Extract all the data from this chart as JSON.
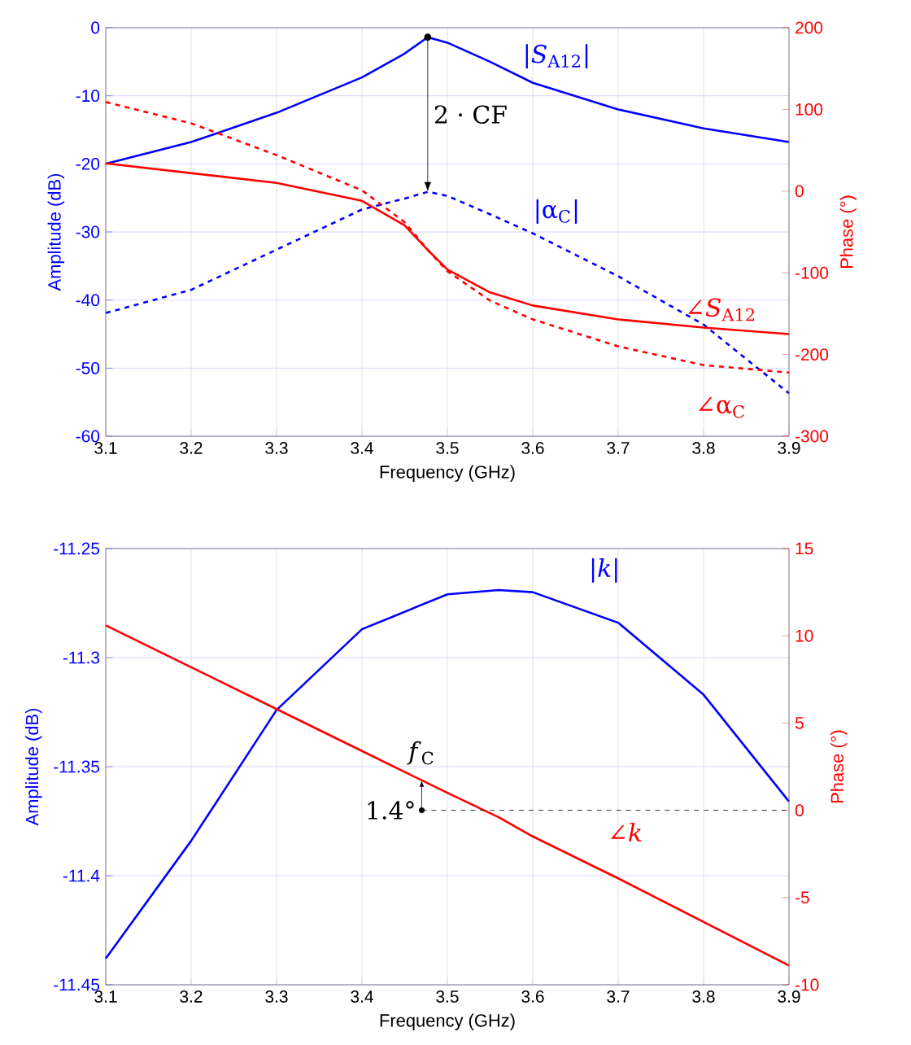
{
  "chart_data": [
    {
      "type": "line",
      "xlabel": "Frequency (GHz)",
      "ylabel": "Amplitude (dB)",
      "y2label": "Phase (°)",
      "xlim": [
        3.1,
        3.9
      ],
      "xticks": [
        3.1,
        3.2,
        3.3,
        3.4,
        3.5,
        3.6,
        3.7,
        3.8,
        3.9
      ],
      "ylim": [
        -60,
        0
      ],
      "yticks": [
        -60,
        -50,
        -40,
        -30,
        -20,
        -10,
        0
      ],
      "y2lim": [
        -300,
        200
      ],
      "y2ticks": [
        -300,
        -200,
        -100,
        0,
        100,
        200
      ],
      "grid": true,
      "x": [
        3.1,
        3.2,
        3.3,
        3.4,
        3.45,
        3.477,
        3.5,
        3.55,
        3.6,
        3.7,
        3.8,
        3.9
      ],
      "series": [
        {
          "name": "|*S*$_{A12}$|",
          "color": "#0000ff",
          "line_style": "solid",
          "values": [
            -20,
            -16.8,
            -12.5,
            -7.3,
            -3.8,
            -1.4,
            -2.2,
            -5,
            -8.1,
            -12,
            -14.8,
            -16.8
          ]
        },
        {
          "name": "|α$_{C}$|",
          "color": "#0000ff",
          "line_style": "dashed",
          "values": [
            -41.9,
            -38.5,
            -32.6,
            -26.7,
            -25.1,
            -24.1,
            -24.7,
            -27.4,
            -30.2,
            -36.5,
            -43.6,
            -53.7
          ]
        },
        {
          "name": "∠*S*$_{A12}$",
          "color": "#ff0000",
          "line_style": "solid",
          "axis": "y2",
          "values": [
            34,
            22,
            10,
            -12,
            -42,
            -72,
            -96,
            -124,
            -140,
            -157,
            -167,
            -175
          ]
        },
        {
          "name": "∠α$_{C}$",
          "color": "#ff0000",
          "line_style": "dashed",
          "axis": "y2",
          "values": [
            109,
            83,
            44,
            1,
            -38,
            -72,
            -98,
            -134,
            -157,
            -190,
            -213,
            -222
          ]
        }
      ],
      "annotations": [
        {
          "text": "2 · CF",
          "x": 3.477,
          "y": -1.4
        }
      ]
    },
    {
      "type": "line",
      "xlabel": "Frequency (GHz)",
      "ylabel": "Amplitude (dB)",
      "y2label": "Phase (°)",
      "xlim": [
        3.1,
        3.9
      ],
      "xticks": [
        3.1,
        3.2,
        3.3,
        3.4,
        3.5,
        3.6,
        3.7,
        3.8,
        3.9
      ],
      "ylim": [
        -11.45,
        -11.25
      ],
      "yticks": [
        -11.45,
        -11.4,
        -11.35,
        -11.3,
        -11.25
      ],
      "y2lim": [
        -10,
        15
      ],
      "y2ticks": [
        -10,
        -5,
        0,
        5,
        10,
        15
      ],
      "grid": true,
      "x": [
        3.1,
        3.2,
        3.3,
        3.4,
        3.5,
        3.56,
        3.6,
        3.7,
        3.8,
        3.9
      ],
      "series": [
        {
          "name": "|*k*|",
          "color": "#0000ff",
          "line_style": "solid",
          "values": [
            -11.438,
            -11.384,
            -11.324,
            -11.287,
            -11.271,
            -11.269,
            -11.27,
            -11.284,
            -11.317,
            -11.366
          ]
        },
        {
          "name": "∠*k*",
          "color": "#ff0000",
          "line_style": "solid",
          "axis": "y2",
          "values": [
            10.6,
            8.2,
            5.8,
            3.4,
            1.0,
            -0.4,
            -1.5,
            -3.9,
            -6.4,
            -8.9
          ]
        },
        {
          "color": "#000000",
          "line_style": "dashed",
          "axis": "y2",
          "x": [
            3.47,
            3.9
          ],
          "values": [
            0,
            0
          ]
        }
      ],
      "annotations": [
        "*f*$_{C}$",
        "1.4°"
      ]
    }
  ]
}
